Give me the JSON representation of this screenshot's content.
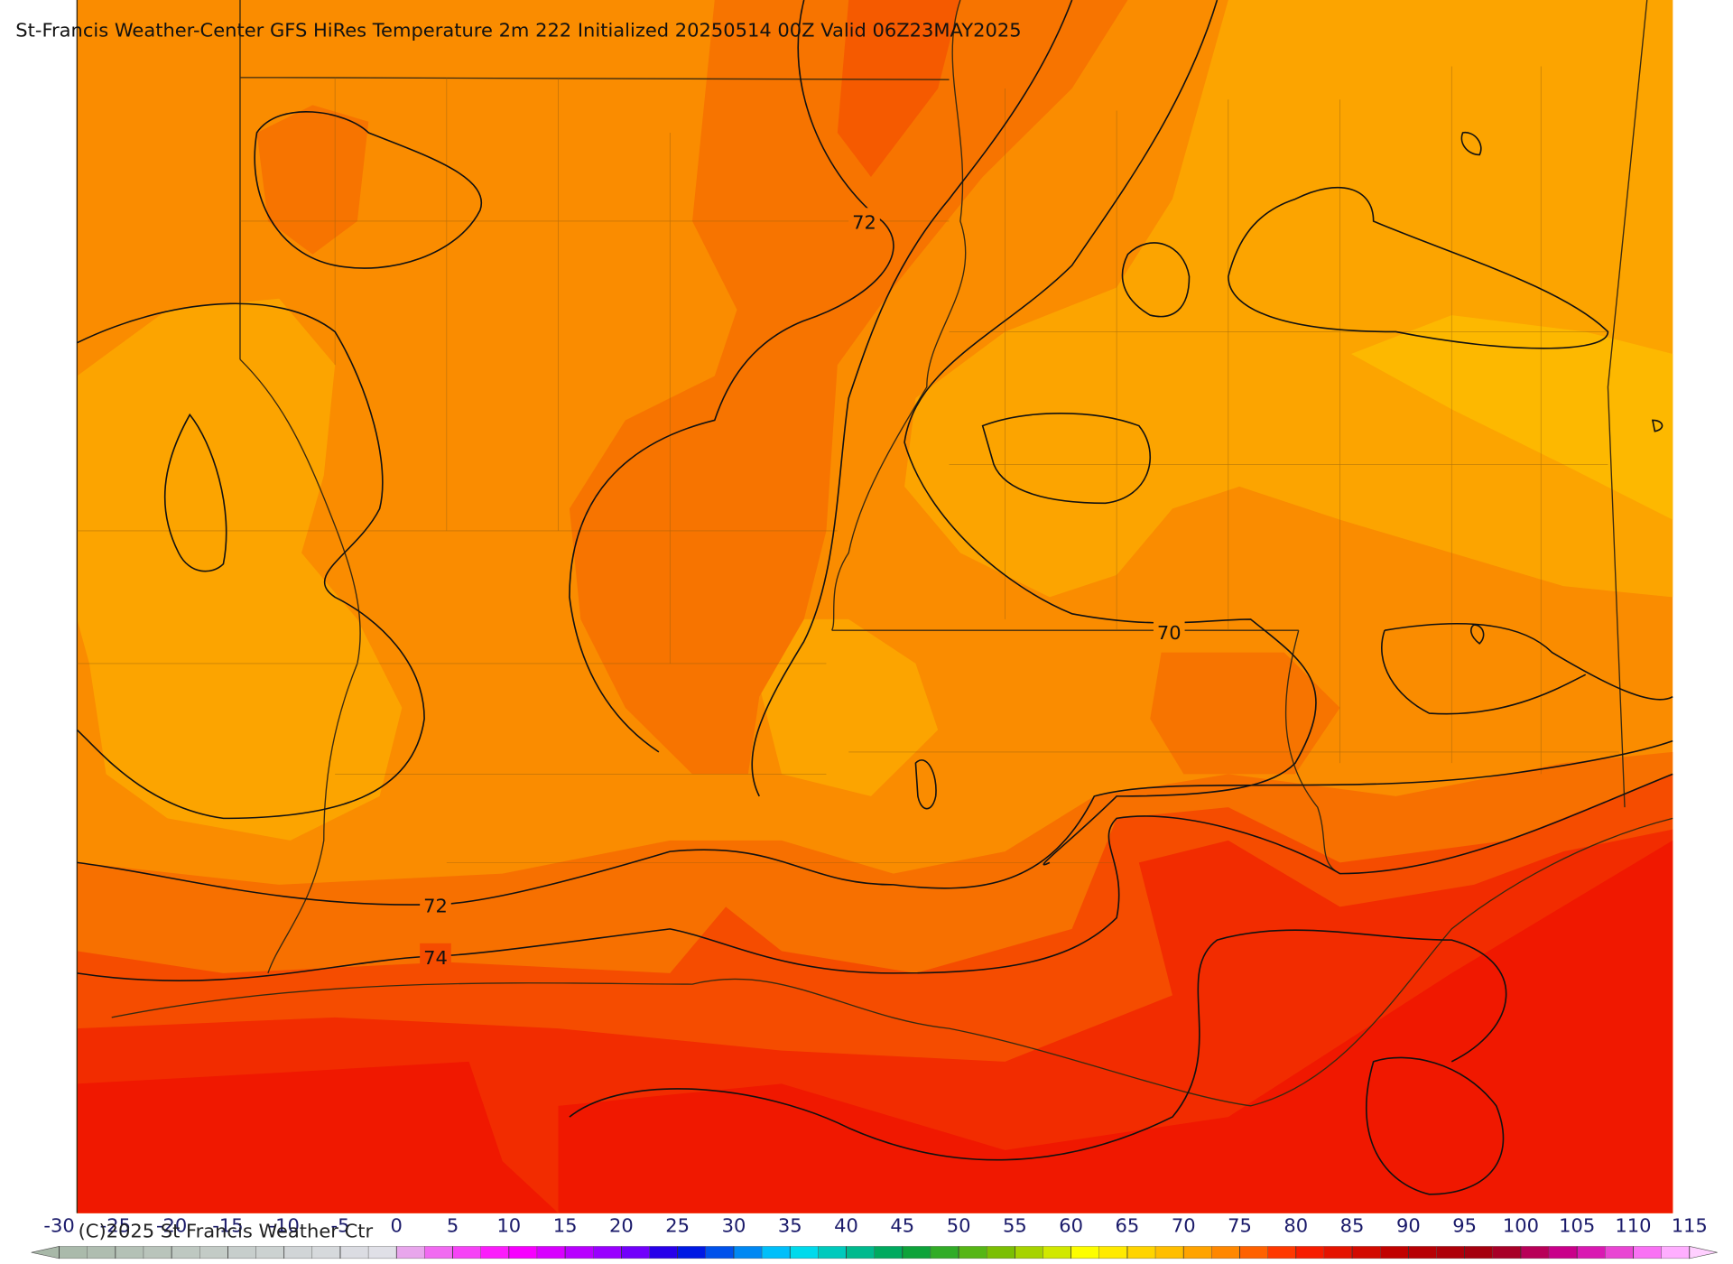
{
  "title": "St-Francis Weather-Center GFS HiRes Temperature 2m  222 Initialized 20250514 00Z Valid 06Z23MAY2025",
  "contour_labels": [
    "72",
    "70",
    "72",
    "74"
  ],
  "copyright": "(C)2025 St Francis Weather Ctr",
  "colorbar": {
    "ticks": [
      -30,
      -25,
      -20,
      -15,
      -10,
      -5,
      0,
      5,
      10,
      15,
      20,
      25,
      30,
      35,
      40,
      45,
      50,
      55,
      60,
      65,
      70,
      75,
      80,
      85,
      90,
      95,
      100,
      105,
      110,
      115
    ]
  }
}
